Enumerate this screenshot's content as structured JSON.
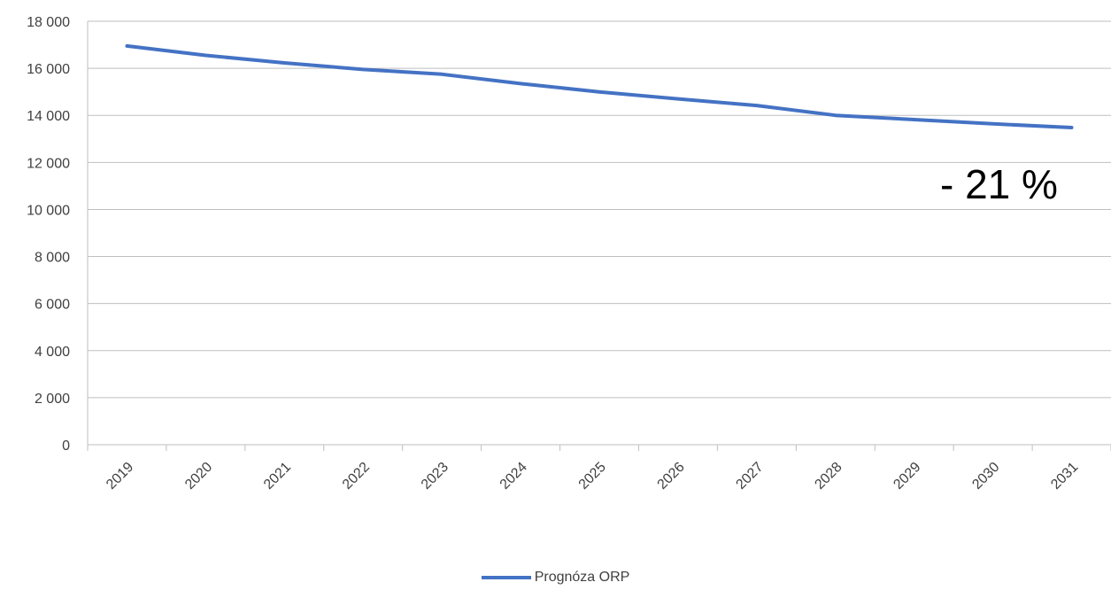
{
  "chart_data": {
    "type": "line",
    "title": "",
    "xlabel": "",
    "ylabel": "",
    "categories": [
      "2019",
      "2020",
      "2021",
      "2022",
      "2023",
      "2024",
      "2025",
      "2026",
      "2027",
      "2028",
      "2029",
      "2030",
      "2031"
    ],
    "series": [
      {
        "name": "Prognóza ORP",
        "values": [
          16950,
          16550,
          16230,
          15950,
          15750,
          15350,
          15000,
          14700,
          14420,
          14000,
          13820,
          13640,
          13480
        ]
      }
    ],
    "ylim": [
      0,
      18000
    ],
    "yticks": [
      0,
      2000,
      4000,
      6000,
      8000,
      10000,
      12000,
      14000,
      16000,
      18000
    ],
    "ytick_labels": [
      "0",
      "2 000",
      "4 000",
      "6 000",
      "8 000",
      "10 000",
      "12 000",
      "14 000",
      "16 000",
      "18 000"
    ],
    "grid": true,
    "legend_position": "bottom",
    "annotation": "- 21 %",
    "colors": {
      "series": "#4472C4",
      "grid": "#BFBFBF",
      "axis": "#BFBFBF",
      "text": "#404040"
    }
  }
}
